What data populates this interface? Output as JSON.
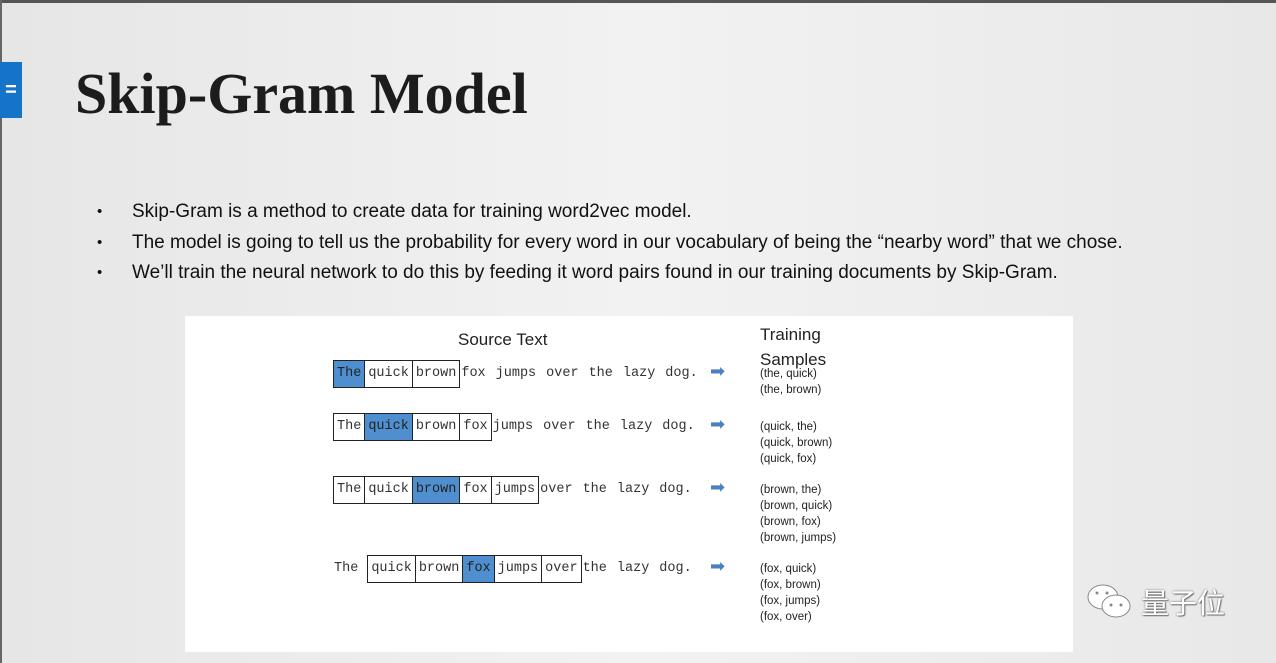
{
  "slide": {
    "title": "Skip-Gram Model",
    "tab_glyph": "=",
    "bullets": [
      "Skip-Gram is a method to create data for training word2vec model.",
      "The model is going to tell us the probability for every word in our vocabulary of being the “nearby word” that we chose.",
      "We’ll train the neural network to do this by feeding it word pairs found in our training documents by Skip-Gram."
    ]
  },
  "figure": {
    "source_header": "Source Text",
    "training_header_1": "Training",
    "training_header_2": "Samples",
    "highlight_color": "#4f8fd0",
    "rows": [
      {
        "words": [
          "The",
          "quick",
          "brown",
          "fox",
          "jumps",
          "over",
          "the",
          "lazy",
          "dog."
        ],
        "window": [
          0,
          2
        ],
        "center": 0,
        "samples": [
          "(the, quick)",
          "(the, brown)"
        ]
      },
      {
        "words": [
          "The",
          "quick",
          "brown",
          "fox",
          "jumps",
          "over",
          "the",
          "lazy",
          "dog."
        ],
        "window": [
          0,
          3
        ],
        "center": 1,
        "samples": [
          "(quick, the)",
          "(quick, brown)",
          "(quick, fox)"
        ]
      },
      {
        "words": [
          "The",
          "quick",
          "brown",
          "fox",
          "jumps",
          "over",
          "the",
          "lazy",
          "dog."
        ],
        "window": [
          0,
          4
        ],
        "center": 2,
        "samples": [
          "(brown, the)",
          "(brown, quick)",
          "(brown, fox)",
          "(brown, jumps)"
        ]
      },
      {
        "words": [
          "The",
          "quick",
          "brown",
          "fox",
          "jumps",
          "over",
          "the",
          "lazy",
          "dog."
        ],
        "window": [
          1,
          5
        ],
        "center": 3,
        "samples": [
          "(fox, quick)",
          "(fox, brown)",
          "(fox, jumps)",
          "(fox, over)"
        ]
      }
    ]
  },
  "watermark": {
    "text": "量子位",
    "icon": "wechat-icon"
  }
}
